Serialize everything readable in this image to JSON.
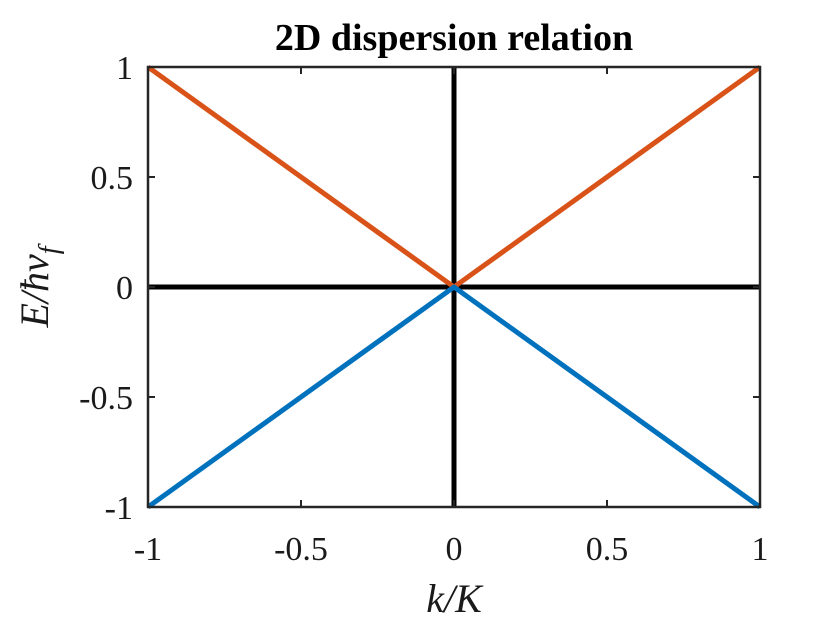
{
  "chart_data": {
    "type": "line",
    "title": "2D dispersion relation",
    "xlabel": "k/K",
    "ylabel": "E/ħv",
    "ylabel_subscript": "f",
    "xlim": [
      -1,
      1
    ],
    "ylim": [
      -1,
      1
    ],
    "xticks": [
      -1,
      -0.5,
      0,
      0.5,
      1
    ],
    "xtick_labels": [
      "-1",
      "-0.5",
      "0",
      "0.5",
      "1"
    ],
    "yticks": [
      -1,
      -0.5,
      0,
      0.5,
      1
    ],
    "ytick_labels": [
      "-1",
      "-0.5",
      "0",
      "0.5",
      "1"
    ],
    "grid": false,
    "series": [
      {
        "x": [
          -1,
          0,
          1
        ],
        "y": [
          1,
          0,
          1
        ],
        "color": "#D95319"
      },
      {
        "x": [
          -1,
          0,
          1
        ],
        "y": [
          -1,
          0,
          -1
        ],
        "color": "#0072BD"
      }
    ],
    "reference_lines": [
      {
        "orientation": "horizontal",
        "value": 0,
        "color": "#000000"
      },
      {
        "orientation": "vertical",
        "value": 0,
        "color": "#000000"
      }
    ]
  }
}
